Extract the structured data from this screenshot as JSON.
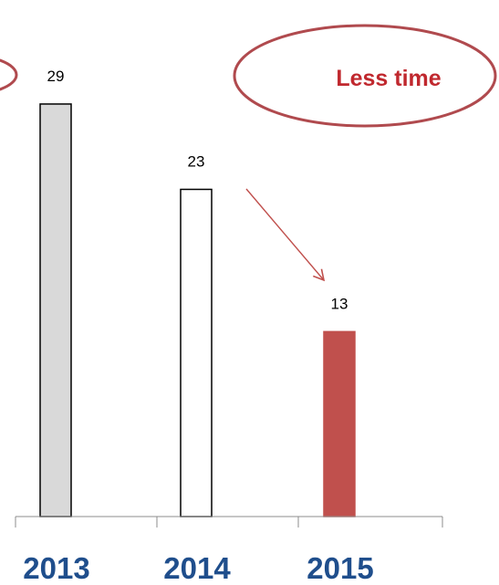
{
  "chart_data": {
    "type": "bar",
    "categories": [
      "2013",
      "2014",
      "2015"
    ],
    "values": [
      29,
      23,
      13
    ],
    "value_labels": [
      "29",
      "23",
      "13"
    ],
    "ylim": [
      0,
      31.5
    ],
    "bar_fills": [
      "#d9d9d9",
      "#ffffff",
      "#c0504d"
    ],
    "bar_strokes": [
      "#000000",
      "#000000",
      "#c0504d"
    ],
    "category_color": "#1f4e8c",
    "annotation": {
      "text": "Less time",
      "color": "#c0282e",
      "ellipse_color": "#b04a4e",
      "arrow_color": "#c0504d"
    }
  }
}
